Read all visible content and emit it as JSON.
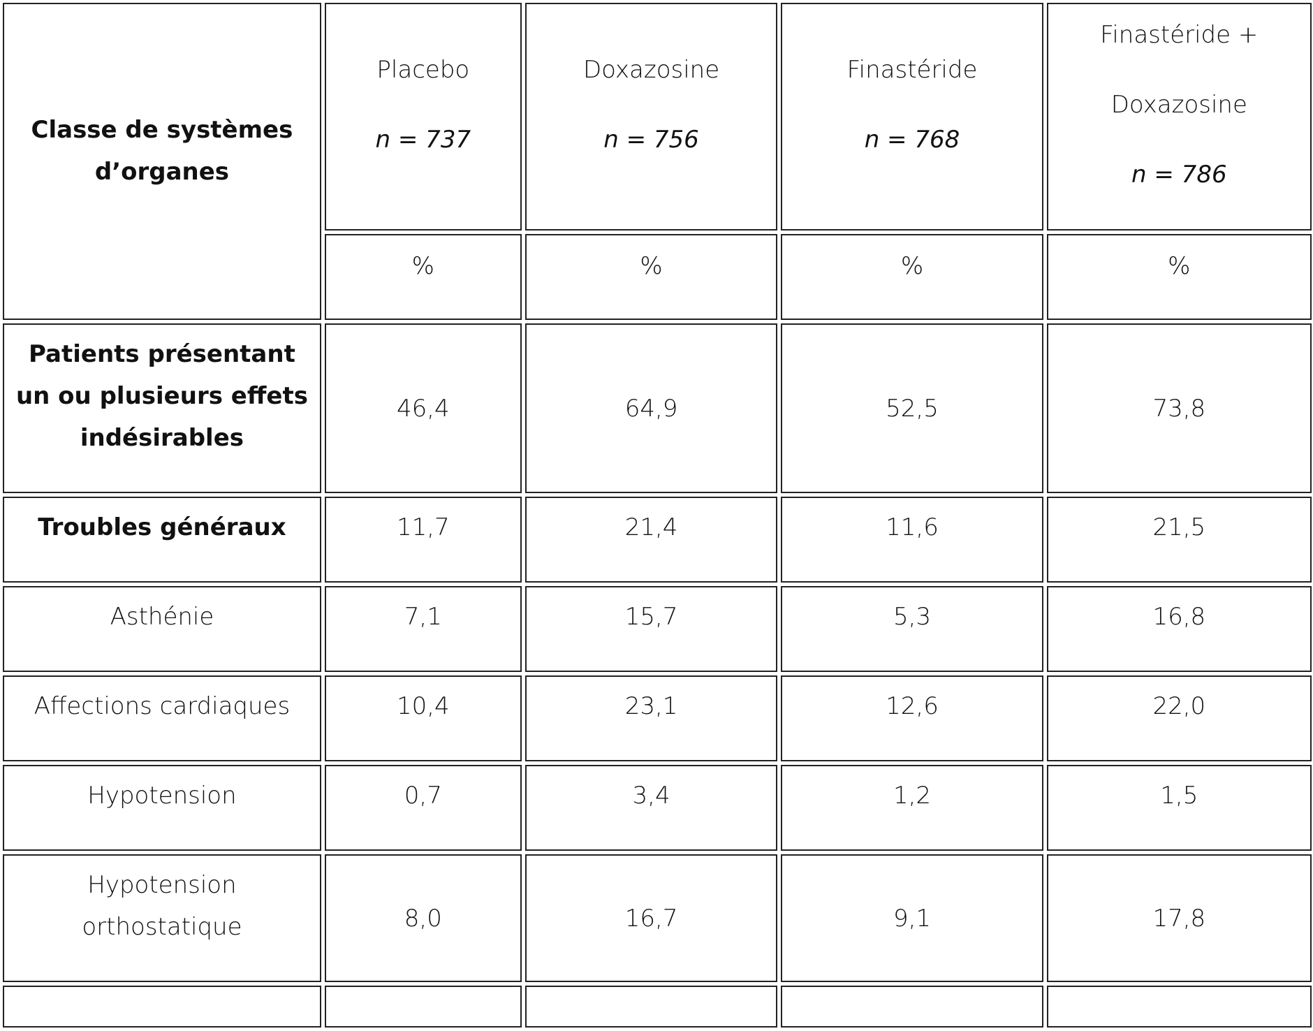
{
  "header": {
    "row_label": "Classe de systèmes d’organes",
    "columns": [
      {
        "name": "Placebo",
        "n": "n = 737",
        "unit": "%"
      },
      {
        "name": "Doxazosine",
        "n": "n = 756",
        "unit": "%"
      },
      {
        "name": "Finastéride",
        "n": "n = 768",
        "unit": "%"
      },
      {
        "name_line1": "Finastéride +",
        "name_line2": "Doxazosine",
        "n": "n = 786",
        "unit": "%"
      }
    ]
  },
  "rows": [
    {
      "label": "Patients présentant un ou plusieurs effets indésirables",
      "bold": true,
      "values": [
        "46,4",
        "64,9",
        "52,5",
        "73,8"
      ]
    },
    {
      "label": "Troubles généraux",
      "bold": true,
      "values": [
        "11,7",
        "21,4",
        "11,6",
        "21,5"
      ]
    },
    {
      "label": "Asthénie",
      "bold": false,
      "values": [
        "7,1",
        "15,7",
        "5,3",
        "16,8"
      ]
    },
    {
      "label": "Affections cardiaques",
      "bold": false,
      "values": [
        "10,4",
        "23,1",
        "12,6",
        "22,0"
      ]
    },
    {
      "label": "Hypotension",
      "bold": false,
      "values": [
        "0,7",
        "3,4",
        "1,2",
        "1,5"
      ]
    },
    {
      "label": "Hypotension orthostatique",
      "bold": false,
      "values": [
        "8,0",
        "16,7",
        "9,1",
        "17,8"
      ]
    }
  ]
}
